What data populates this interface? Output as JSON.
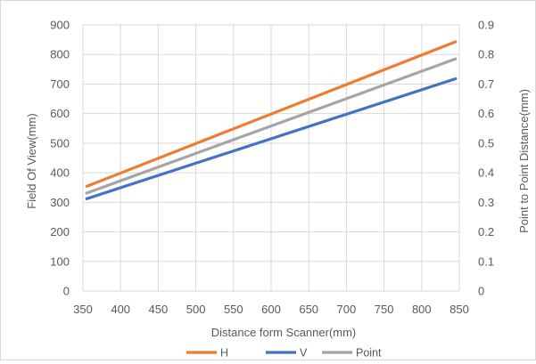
{
  "chart_data": {
    "type": "line",
    "title": "",
    "xlabel": "Distance form Scanner(mm)",
    "ylabel_left": "Field Of View(mm)",
    "ylabel_right": "Point to Point Distance(mm)",
    "x_ticks": [
      "350",
      "400",
      "450",
      "500",
      "550",
      "600",
      "650",
      "700",
      "750",
      "800",
      "850"
    ],
    "y_left_ticks": [
      "0",
      "100",
      "200",
      "300",
      "400",
      "500",
      "600",
      "700",
      "800",
      "900"
    ],
    "y_right_ticks": [
      "0",
      "0.1",
      "0.2",
      "0.3",
      "0.4",
      "0.5",
      "0.6",
      "0.7",
      "0.8",
      "0.9"
    ],
    "xlim": [
      350,
      850
    ],
    "ylim_left": [
      0,
      900
    ],
    "ylim_right": [
      0,
      0.9
    ],
    "grid": true,
    "legend_position": "bottom",
    "series": [
      {
        "name": "H",
        "axis": "left",
        "color": "#ed7d31",
        "x": [
          355,
          845
        ],
        "y": [
          354,
          843
        ]
      },
      {
        "name": "V",
        "axis": "left",
        "color": "#4472c4",
        "x": [
          355,
          845
        ],
        "y": [
          312,
          718
        ]
      },
      {
        "name": "Point",
        "axis": "right",
        "color": "#a5a5a5",
        "x": [
          355,
          845
        ],
        "y": [
          0.331,
          0.785
        ]
      }
    ]
  }
}
